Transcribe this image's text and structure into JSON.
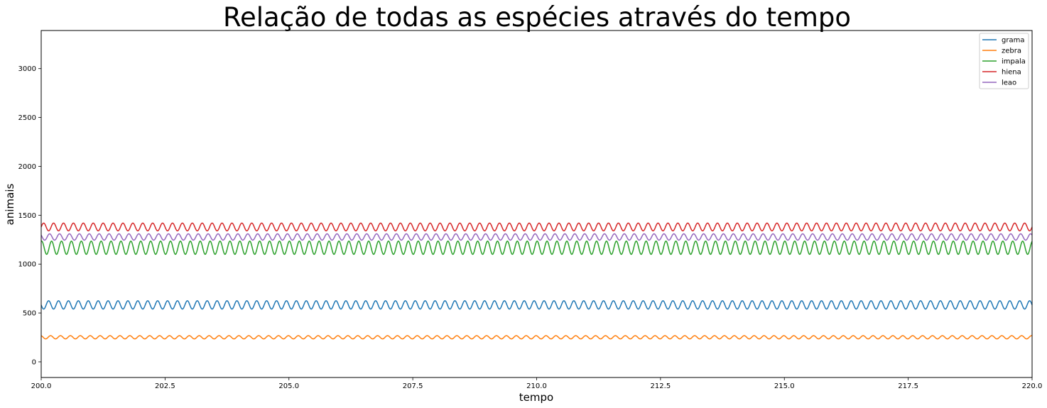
{
  "chart_data": {
    "type": "line",
    "title": "Relação de todas as espécies através do tempo",
    "xlabel": "tempo",
    "ylabel": "animais",
    "xlim": [
      200.0,
      220.0
    ],
    "ylim": [
      -160,
      3390
    ],
    "x_ticks": [
      "200.0",
      "202.5",
      "205.0",
      "207.5",
      "210.0",
      "212.5",
      "215.0",
      "217.5",
      "220.0"
    ],
    "x_tick_values": [
      200.0,
      202.5,
      205.0,
      207.5,
      210.0,
      212.5,
      215.0,
      217.5,
      220.0
    ],
    "y_ticks": [
      "0",
      "500",
      "1000",
      "1500",
      "2000",
      "2500",
      "3000"
    ],
    "y_tick_values": [
      0,
      500,
      1000,
      1500,
      2000,
      2500,
      3000
    ],
    "grid": false,
    "legend_position": "top-right",
    "period": 0.2,
    "series": [
      {
        "name": "grama",
        "color": "#1f77b4",
        "min": 540,
        "max": 625,
        "phase": 0.5
      },
      {
        "name": "zebra",
        "color": "#ff7f0e",
        "min": 235,
        "max": 268,
        "phase": 0.3
      },
      {
        "name": "impala",
        "color": "#2ca02c",
        "min": 1100,
        "max": 1235,
        "phase": 0.2
      },
      {
        "name": "hiena",
        "color": "#d62728",
        "min": 1340,
        "max": 1420,
        "phase": 0.0
      },
      {
        "name": "leao",
        "color": "#9467bd",
        "min": 1245,
        "max": 1310,
        "phase": 0.4
      }
    ]
  }
}
